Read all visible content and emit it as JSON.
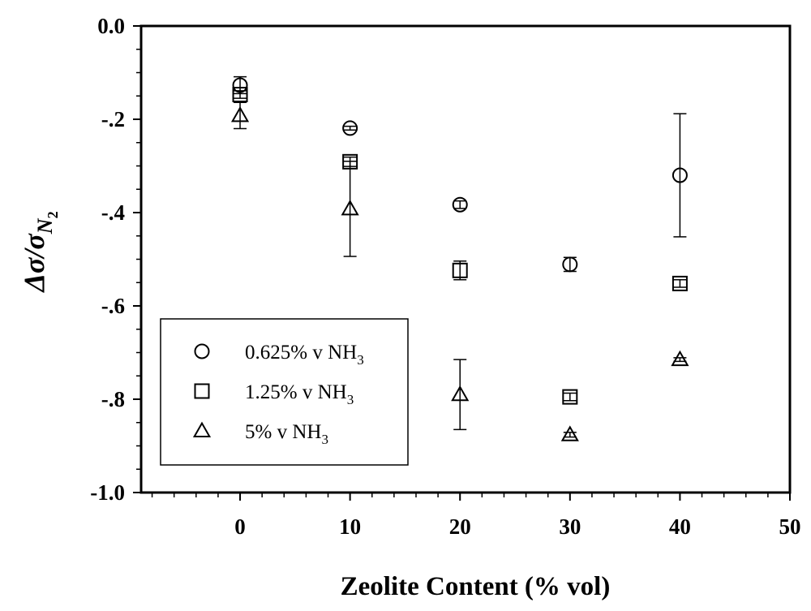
{
  "chart_data": {
    "type": "scatter",
    "title": "",
    "xlabel": "Zeolite Content (% vol)",
    "ylabel": "Δσ/σ",
    "ylabel_subscript": "N",
    "ylabel_subsubscript": "2",
    "xlim": [
      -9,
      50
    ],
    "ylim": [
      -1.0,
      0.0
    ],
    "x_ticks": [
      0,
      10,
      20,
      30,
      40,
      50
    ],
    "x_tick_labels": [
      "0",
      "10",
      "20",
      "30",
      "40",
      "50"
    ],
    "y_ticks": [
      0.0,
      -0.2,
      -0.4,
      -0.6,
      -0.8,
      -1.0
    ],
    "y_tick_labels": [
      "0.0",
      "-.2",
      "-.4",
      "-.6",
      "-.8",
      "-1.0"
    ],
    "grid": false,
    "legend_position": "bottom-left",
    "series": [
      {
        "name": "0.625% v NH",
        "name_subscript": "3",
        "marker": "circle",
        "points": [
          {
            "x": 0,
            "y": -0.127,
            "err": 0.018
          },
          {
            "x": 10,
            "y": -0.219,
            "err": 0.004
          },
          {
            "x": 20,
            "y": -0.383,
            "err": 0.008
          },
          {
            "x": 30,
            "y": -0.511,
            "err": 0.015
          },
          {
            "x": 40,
            "y": -0.32,
            "err": 0.132
          }
        ]
      },
      {
        "name": "1.25% v NH",
        "name_subscript": "3",
        "marker": "square",
        "points": [
          {
            "x": 0,
            "y": -0.147,
            "err": 0.008
          },
          {
            "x": 10,
            "y": -0.291,
            "err": 0.01
          },
          {
            "x": 20,
            "y": -0.524,
            "err": 0.02
          },
          {
            "x": 30,
            "y": -0.795,
            "err": 0.008
          },
          {
            "x": 40,
            "y": -0.552,
            "err": 0.008
          }
        ]
      },
      {
        "name": "5% v NH",
        "name_subscript": "3",
        "marker": "triangle",
        "points": [
          {
            "x": 0,
            "y": -0.192,
            "err": 0.028
          },
          {
            "x": 10,
            "y": -0.392,
            "err": 0.102
          },
          {
            "x": 20,
            "y": -0.79,
            "err": 0.075
          },
          {
            "x": 30,
            "y": -0.876,
            "err": 0.005
          },
          {
            "x": 40,
            "y": -0.715,
            "err": 0.004
          }
        ]
      }
    ]
  }
}
